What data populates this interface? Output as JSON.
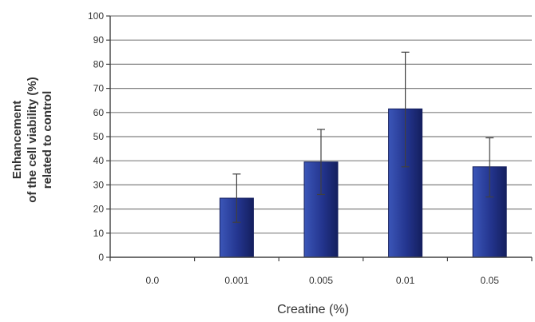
{
  "chart_data": {
    "type": "bar",
    "xlabel": "Creatine (%)",
    "ylabel_lines": [
      "Enhancement",
      "of the cell viability (%)",
      "related to control"
    ],
    "categories": [
      "0.0",
      "0.001",
      "0.005",
      "0.01",
      "0.05"
    ],
    "values": [
      0,
      24.5,
      39.5,
      61.5,
      37.5
    ],
    "error_low": [
      0,
      14.5,
      26,
      37.5,
      25
    ],
    "error_high": [
      0,
      34.5,
      53,
      85,
      49.5
    ],
    "ylim": [
      0,
      100
    ],
    "yticks": [
      0,
      10,
      20,
      30,
      40,
      50,
      60,
      70,
      80,
      90,
      100
    ],
    "grid": true,
    "bar_color_top": "#3b56b8",
    "bar_color_mid": "#23348d",
    "bar_color_bottom": "#141f5e",
    "grid_color": "#808080",
    "axis_color": "#404040",
    "text_color": "#333333"
  }
}
